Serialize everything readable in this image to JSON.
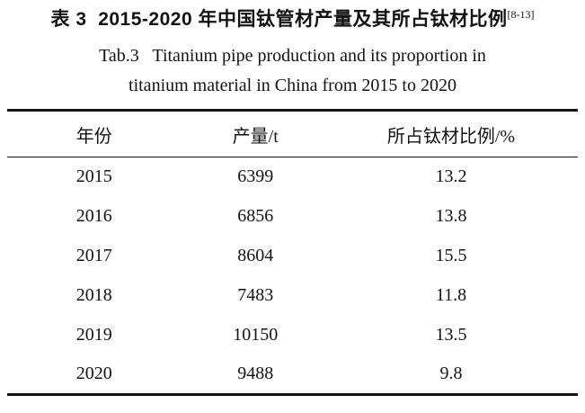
{
  "title": {
    "zh": "表 3  2015-2020 年中国钛管材产量及其所占钛材比例",
    "zh_ref": "[8-13]",
    "en_line1": "Tab.3   Titanium pipe production and its proportion in",
    "en_line2": "titanium material in China from 2015 to 2020"
  },
  "table": {
    "headers": [
      "年份",
      "产量/t",
      "所占钛材比例/%"
    ],
    "rows": [
      [
        "2015",
        "6399",
        "13.2"
      ],
      [
        "2016",
        "6856",
        "13.8"
      ],
      [
        "2017",
        "8604",
        "15.5"
      ],
      [
        "2018",
        "7483",
        "11.8"
      ],
      [
        "2019",
        "10150",
        "13.5"
      ],
      [
        "2020",
        "9488",
        "9.8"
      ]
    ]
  },
  "colors": {
    "text": "#131313",
    "rule": "#131313",
    "background": "#ffffff"
  },
  "chart_data": {
    "type": "table",
    "title": "2015-2020 年中国钛管材产量及其所占钛材比例 / Titanium pipe production and its proportion in titanium material in China from 2015 to 2020",
    "categories": [
      2015,
      2016,
      2017,
      2018,
      2019,
      2020
    ],
    "series": [
      {
        "name": "产量/t",
        "values": [
          6399,
          6856,
          8604,
          7483,
          10150,
          9488
        ]
      },
      {
        "name": "所占钛材比例/%",
        "values": [
          13.2,
          13.8,
          15.5,
          11.8,
          13.5,
          9.8
        ]
      }
    ],
    "citation": "[8-13]"
  }
}
